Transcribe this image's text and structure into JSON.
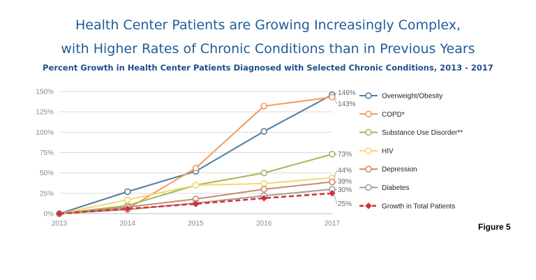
{
  "title_line1": "Health Center Patients are Growing Increasingly Complex,",
  "title_line2": "with Higher Rates of Chronic Conditions than in Previous Years",
  "subtitle": "Percent Growth in Health Center Patients Diagnosed with Selected Chronic Conditions, 2013 - 2017",
  "figure_label": "Figure 5",
  "chart_data": {
    "type": "line",
    "title": "Percent Growth in Health Center Patients Diagnosed with Selected Chronic Conditions, 2013 - 2017",
    "xlabel": "",
    "ylabel": "",
    "x": [
      "2013",
      "2014",
      "2015",
      "2016",
      "2017"
    ],
    "ylim": [
      0,
      150
    ],
    "yticks": [
      0,
      25,
      50,
      75,
      100,
      125,
      150
    ],
    "ytick_labels": [
      "0%",
      "25%",
      "50%",
      "75%",
      "100%",
      "125%",
      "150%"
    ],
    "grid": "horizontal",
    "legend_position": "right",
    "series": [
      {
        "name": "Overweight/Obesity",
        "values": [
          0,
          27,
          52,
          101,
          146
        ],
        "color": "#4f7ea3",
        "dashed": false,
        "marker": "open-circle",
        "end_label": "146%"
      },
      {
        "name": "COPD*",
        "values": [
          0,
          6,
          56,
          132,
          143
        ],
        "color": "#f29a5c",
        "dashed": false,
        "marker": "open-circle",
        "end_label": "143%"
      },
      {
        "name": "Substance Use Disorder**",
        "values": [
          0,
          10,
          35,
          50,
          73
        ],
        "color": "#9bbb59",
        "dashed": false,
        "marker": "open-circle",
        "end_label": "73%"
      },
      {
        "name": "HIV",
        "values": [
          0,
          17,
          35,
          37,
          44
        ],
        "color": "#f5d76e",
        "dashed": false,
        "marker": "open-circle",
        "end_label": "44%"
      },
      {
        "name": "Depression",
        "values": [
          0,
          8,
          18,
          30,
          39
        ],
        "color": "#c98a6c",
        "dashed": false,
        "marker": "open-circle",
        "end_label": "39%"
      },
      {
        "name": "Diabetes",
        "values": [
          0,
          5,
          13,
          22,
          30
        ],
        "color": "#a99a96",
        "dashed": false,
        "marker": "open-circle",
        "end_label": "30%"
      },
      {
        "name": "Growth in Total Patients",
        "values": [
          0,
          6,
          12,
          19,
          25
        ],
        "color": "#d0303a",
        "dashed": true,
        "marker": "filled-diamond",
        "end_label": "25%"
      }
    ]
  }
}
